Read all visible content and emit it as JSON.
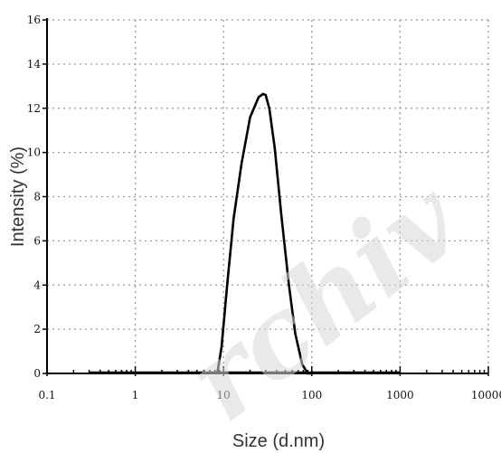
{
  "chart_data": {
    "type": "line",
    "title": "",
    "xlabel": "Size (d.nm)",
    "ylabel": "Intensity (%)",
    "x_scale": "log",
    "xlim": [
      0.1,
      10000
    ],
    "ylim": [
      0,
      16
    ],
    "x_ticks": [
      0.1,
      1,
      10,
      100,
      1000,
      10000
    ],
    "x_tick_labels": [
      "0.1",
      "1",
      "10",
      "100",
      "1000",
      "10000"
    ],
    "y_ticks": [
      0,
      2,
      4,
      6,
      8,
      10,
      12,
      14,
      16
    ],
    "y_tick_labels": [
      "0",
      "2",
      "4",
      "6",
      "8",
      "10",
      "12",
      "14",
      "16"
    ],
    "grid": true,
    "baseline_range": [
      0.3,
      1000
    ],
    "series": [
      {
        "x": [
          8.5,
          9.5,
          11,
          13,
          16,
          20,
          25,
          28,
          30,
          33,
          38,
          45,
          55,
          65,
          78,
          90,
          100
        ],
        "y": [
          0,
          1.2,
          4.0,
          7.0,
          9.5,
          11.6,
          12.5,
          12.65,
          12.6,
          12.0,
          10.2,
          7.2,
          4.0,
          1.8,
          0.4,
          0,
          0
        ]
      }
    ],
    "watermark": "rchiv"
  }
}
